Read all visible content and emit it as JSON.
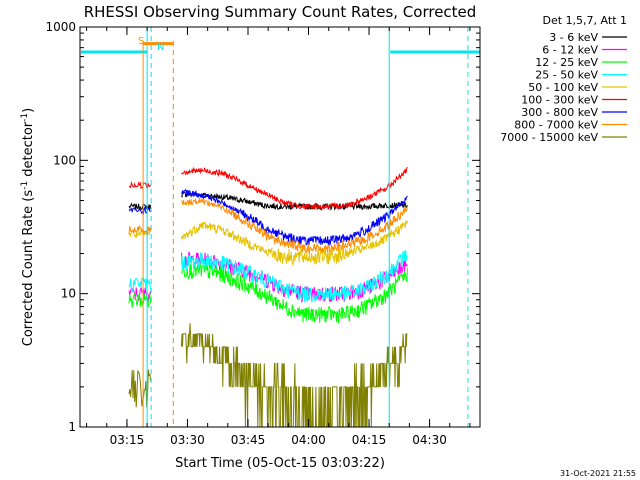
{
  "chart_data": {
    "type": "line",
    "title": "RHESSI Observing Summary Count Rates, Corrected",
    "xlabel": "Start Time (05-Oct-15 03:03:22)",
    "ylabel": "Corrected Count Rate (s⁻¹ detector⁻¹)",
    "ylabel_main": "Corrected Count Rate (s",
    "ylabel_sup1": "-1",
    "ylabel_mid": " detector",
    "ylabel_sup2": "-1",
    "ylabel_end": ")",
    "yscale": "log",
    "ylim": [
      1,
      1000
    ],
    "xlim": [
      "03:03:22",
      "04:42:30"
    ],
    "x_ticks": [
      "03:15",
      "03:30",
      "03:45",
      "04:00",
      "04:15",
      "04:30"
    ],
    "y_ticks": [
      "1",
      "10",
      "100",
      "1000"
    ],
    "legend_title": "Det 1,5,7, Att 1",
    "legend_placement": "right",
    "footer": "31-Oct-2021 21:55",
    "gaps": [
      [
        "03:21:00",
        "03:28:30"
      ],
      [
        "04:24:30",
        "04:42:30"
      ]
    ],
    "annotations": {
      "saa_label": "S",
      "night_label": "N",
      "saa_interval": [
        "03:19:00",
        "03:26:30"
      ],
      "day_intervals": [
        [
          "03:03:22",
          "03:20:00"
        ],
        [
          "04:20:00",
          "04:42:30"
        ]
      ],
      "day_level": 650,
      "saa_level": 750
    },
    "series": [
      {
        "name": "3 - 6 keV",
        "color": "#000000",
        "start": 45,
        "shape": [
          56,
          55,
          53,
          50,
          46,
          45,
          45,
          45,
          45,
          45,
          46,
          46
        ]
      },
      {
        "name": "6 - 12 keV",
        "color": "#ff00ff",
        "start": 10,
        "shape": [
          18,
          18,
          17,
          15,
          13,
          11,
          10,
          10,
          10,
          11,
          13,
          17
        ]
      },
      {
        "name": "12 - 25 keV",
        "color": "#00ff00",
        "start": 9,
        "shape": [
          15,
          15,
          14,
          12,
          10,
          8,
          7,
          7,
          7,
          8,
          10,
          14
        ]
      },
      {
        "name": "25 - 50 keV",
        "color": "#00ffff",
        "start": 12,
        "shape": [
          17,
          18,
          17,
          15,
          13,
          11,
          10,
          10,
          10,
          11,
          14,
          20
        ]
      },
      {
        "name": "50 - 100 keV",
        "color": "#e6c300",
        "start": 28,
        "shape": [
          26,
          33,
          30,
          25,
          21,
          19,
          19,
          19,
          20,
          22,
          26,
          34
        ]
      },
      {
        "name": "100 - 300 keV",
        "color": "#ff0000",
        "start": 65,
        "shape": [
          82,
          84,
          80,
          68,
          57,
          48,
          45,
          45,
          46,
          52,
          62,
          85
        ]
      },
      {
        "name": "300 - 800 keV",
        "color": "#0000ff",
        "start": 42,
        "shape": [
          58,
          55,
          48,
          40,
          32,
          27,
          25,
          25,
          26,
          30,
          38,
          52
        ]
      },
      {
        "name": "800 - 7000 keV",
        "color": "#ff8c00",
        "start": 30,
        "shape": [
          48,
          50,
          44,
          36,
          28,
          24,
          22,
          22,
          23,
          26,
          32,
          44
        ]
      },
      {
        "name": "7000 - 15000 keV",
        "color": "#808000",
        "start": 2,
        "shape": [
          4.5,
          4.5,
          3.5,
          2.5,
          2,
          1.6,
          1.3,
          1.3,
          1.5,
          2,
          3,
          3.8
        ]
      }
    ]
  }
}
